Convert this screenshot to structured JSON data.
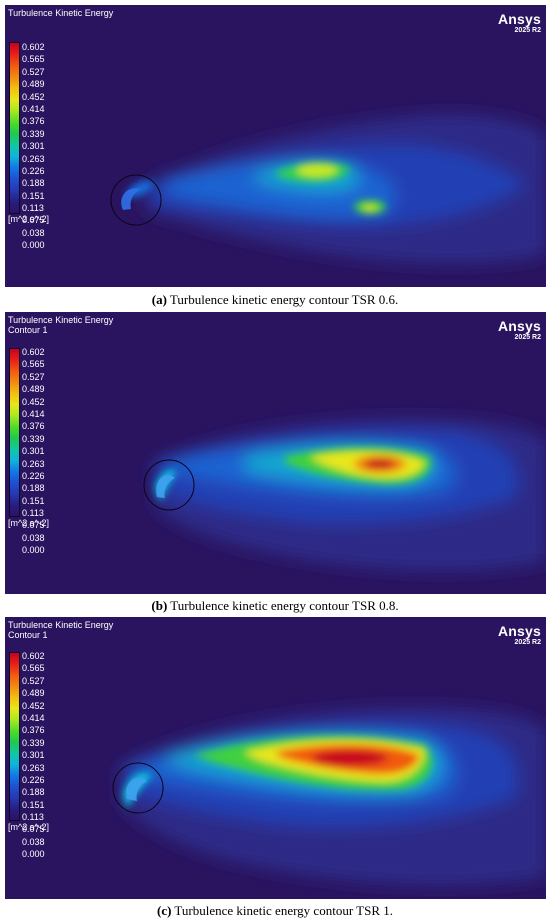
{
  "colormap": {
    "title": "Turbulence Kinetic Energy",
    "ticks": [
      "0.602",
      "0.565",
      "0.527",
      "0.489",
      "0.452",
      "0.414",
      "0.376",
      "0.339",
      "0.301",
      "0.263",
      "0.226",
      "0.188",
      "0.151",
      "0.113",
      "0.075",
      "0.038",
      "0.000"
    ],
    "unit": "[m^2 s^-2]",
    "colors": [
      "#c8001e",
      "#e8201a",
      "#f25a10",
      "#f28a10",
      "#f2c010",
      "#e8e61a",
      "#a8e820",
      "#50dc28",
      "#20c850",
      "#10c8a0",
      "#10b4d8",
      "#1478e6",
      "#1e50d2",
      "#2838b0",
      "#281e80",
      "#2a1460"
    ]
  },
  "brand": {
    "name": "Ansys",
    "version": "2025 R2"
  },
  "background_color": "#2a1460",
  "panels": [
    {
      "subtitle": "",
      "caption_letter": "(a)",
      "caption_text": " Turbulence kinetic energy contour TSR 0.6.",
      "tsr": 0.6
    },
    {
      "subtitle": "Contour 1",
      "caption_letter": "(b)",
      "caption_text": " Turbulence kinetic energy contour TSR 0.8.",
      "tsr": 0.8
    },
    {
      "subtitle": "Contour 1",
      "caption_letter": "(c)",
      "caption_text": " Turbulence kinetic energy contour TSR 1.",
      "tsr": 1.0
    }
  ]
}
